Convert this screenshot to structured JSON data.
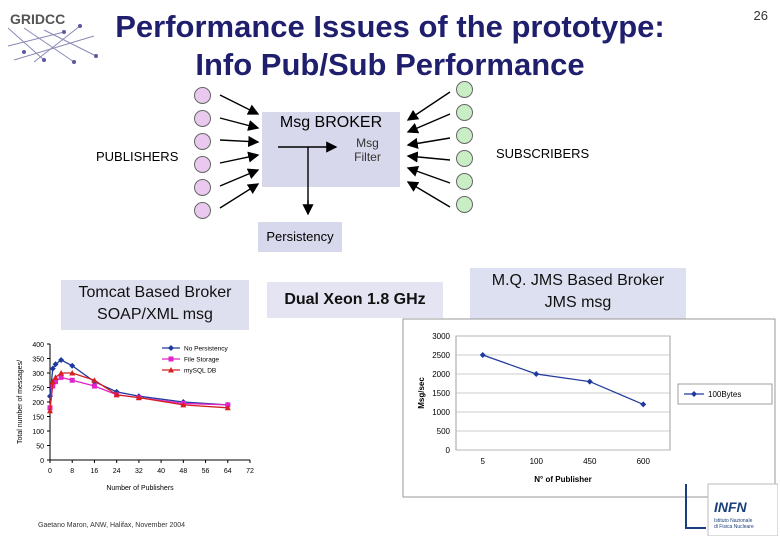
{
  "slide": {
    "number": "26",
    "title_line1": "Performance Issues of the prototype:",
    "title_line2": "Info Pub/Sub Performance",
    "logo_text": "GRIDCC",
    "footer": "Gaetano Maron, ANW, Halifax, November 2004",
    "infn_logo_text": "INFN",
    "infn_subtext_1": "Istituto Nazionale",
    "infn_subtext_2": "di Fisica Nucleare"
  },
  "diagram": {
    "broker_label": "Msg BROKER",
    "filter_label_1": "Msg",
    "filter_label_2": "Filter",
    "publishers_label": "PUBLISHERS",
    "subscribers_label": "SUBSCRIBERS",
    "persistency_label": "Persistency",
    "publisher_color": "#e9c9ee",
    "subscriber_color": "#c9eec5"
  },
  "boxes": {
    "tomcat_line1": "Tomcat Based Broker",
    "tomcat_line2": "SOAP/XML msg",
    "dual_xeon": "Dual Xeon 1.8 GHz",
    "mq_line1": "M.Q. JMS  Based Broker",
    "mq_line2": "JMS msg"
  },
  "chart_data": [
    {
      "type": "line",
      "xlabel": "Number of Publishers",
      "ylabel": "Total number of messages/",
      "x_ticks": [
        "0",
        "8",
        "16",
        "24",
        "32",
        "40",
        "48",
        "56",
        "64",
        "72"
      ],
      "y_ticks": [
        "0",
        "50",
        "100",
        "150",
        "200",
        "250",
        "300",
        "350",
        "400"
      ],
      "xlim": [
        0,
        72
      ],
      "ylim": [
        0,
        400
      ],
      "legend_position": "top-right",
      "series": [
        {
          "name": "No Persistency",
          "color": "#1f3a9e",
          "marker": "diamond",
          "points": [
            [
              0,
              220
            ],
            [
              1,
              315
            ],
            [
              2,
              330
            ],
            [
              4,
              345
            ],
            [
              8,
              325
            ],
            [
              16,
              270
            ],
            [
              24,
              235
            ],
            [
              32,
              220
            ],
            [
              48,
              200
            ],
            [
              64,
              190
            ]
          ]
        },
        {
          "name": "File Storage",
          "color": "#e024c8",
          "marker": "square",
          "points": [
            [
              0,
              180
            ],
            [
              1,
              255
            ],
            [
              2,
              270
            ],
            [
              4,
              285
            ],
            [
              8,
              275
            ],
            [
              16,
              255
            ],
            [
              24,
              225
            ],
            [
              32,
              215
            ],
            [
              48,
              195
            ],
            [
              64,
              190
            ]
          ]
        },
        {
          "name": "mySQL DB",
          "color": "#d42020",
          "marker": "triangle",
          "points": [
            [
              0,
              170
            ],
            [
              1,
              270
            ],
            [
              2,
              285
            ],
            [
              4,
              300
            ],
            [
              8,
              300
            ],
            [
              16,
              275
            ],
            [
              24,
              225
            ],
            [
              32,
              215
            ],
            [
              48,
              190
            ],
            [
              64,
              180
            ]
          ]
        }
      ]
    },
    {
      "type": "line",
      "xlabel": "N° of Publisher",
      "ylabel": "Msg/sec",
      "categories": [
        "5",
        "100",
        "450",
        "600"
      ],
      "y_ticks": [
        "0",
        "500",
        "1000",
        "1500",
        "2000",
        "2500",
        "3000"
      ],
      "ylim": [
        0,
        3000
      ],
      "grid": true,
      "legend_position": "right",
      "series": [
        {
          "name": "100Bytes",
          "color": "#1f3a9e",
          "marker": "diamond",
          "values": [
            2500,
            2000,
            1800,
            1200
          ]
        }
      ]
    }
  ]
}
